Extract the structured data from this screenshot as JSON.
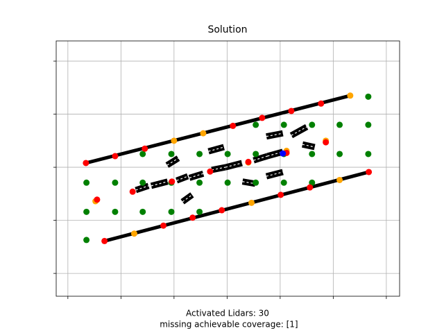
{
  "chart_data": {
    "type": "scatter",
    "title": "Solution",
    "xlabel": [
      "Activated Lidars: 30",
      " missing achievable coverage: [1]"
    ],
    "xlim": [
      -0.22,
      6.25
    ],
    "ylim": [
      -0.43,
      4.38
    ],
    "xticks": [
      0,
      1,
      2,
      3,
      4,
      5,
      6
    ],
    "yticks": [
      0,
      1,
      2,
      3,
      4
    ],
    "grid": true,
    "lines": [
      {
        "color": "#000000",
        "x": [
          0.34,
          5.32
        ],
        "y": [
          2.08,
          3.35
        ]
      },
      {
        "color": "#000000",
        "x": [
          0.69,
          5.67
        ],
        "y": [
          0.61,
          1.91
        ]
      }
    ],
    "segments": [
      {
        "x": [
          3.74,
          4.05
        ],
        "y": [
          2.58,
          2.64
        ]
      },
      {
        "x": [
          4.21,
          4.5
        ],
        "y": [
          2.6,
          2.76
        ]
      },
      {
        "x": [
          2.65,
          2.94
        ],
        "y": [
          2.3,
          2.38
        ]
      },
      {
        "x": [
          1.87,
          2.08
        ],
        "y": [
          2.04,
          2.17
        ]
      },
      {
        "x": [
          4.42,
          4.65
        ],
        "y": [
          2.43,
          2.38
        ]
      },
      {
        "x": [
          3.76,
          4.05
        ],
        "y": [
          2.21,
          2.29
        ]
      },
      {
        "x": [
          3.5,
          3.76
        ],
        "y": [
          2.13,
          2.21
        ]
      },
      {
        "x": [
          2.97,
          3.28
        ],
        "y": [
          2.0,
          2.08
        ]
      },
      {
        "x": [
          2.71,
          2.97
        ],
        "y": [
          1.95,
          2.0
        ]
      },
      {
        "x": [
          2.29,
          2.55
        ],
        "y": [
          1.8,
          1.88
        ]
      },
      {
        "x": [
          2.05,
          2.26
        ],
        "y": [
          1.75,
          1.83
        ]
      },
      {
        "x": [
          1.57,
          1.88
        ],
        "y": [
          1.65,
          1.73
        ]
      },
      {
        "x": [
          1.28,
          1.52
        ],
        "y": [
          1.57,
          1.65
        ]
      },
      {
        "x": [
          3.29,
          3.53
        ],
        "y": [
          1.73,
          1.69
        ]
      },
      {
        "x": [
          3.74,
          4.05
        ],
        "y": [
          1.83,
          1.91
        ]
      },
      {
        "x": [
          2.16,
          2.34
        ],
        "y": [
          1.35,
          1.48
        ]
      }
    ],
    "series": [
      {
        "color": "#008000",
        "x": [
          5.66,
          3.54,
          4.07,
          4.6,
          5.12,
          5.66,
          1.41,
          1.95,
          2.48,
          3.01,
          3.54,
          4.07,
          4.6,
          5.12,
          5.66,
          0.35,
          0.89,
          1.41,
          1.95,
          2.48,
          3.01,
          3.54,
          4.07,
          4.6,
          0.35,
          0.89,
          1.41,
          1.95,
          2.48,
          0.35
        ],
        "y": [
          3.33,
          2.8,
          2.8,
          2.8,
          2.8,
          2.8,
          2.25,
          2.25,
          2.25,
          2.25,
          2.25,
          2.25,
          2.25,
          2.25,
          2.25,
          1.71,
          1.71,
          1.71,
          1.71,
          1.71,
          1.71,
          1.71,
          1.71,
          1.71,
          1.16,
          1.16,
          1.16,
          1.16,
          1.16,
          0.63
        ]
      },
      {
        "color": "#ffa500",
        "x": [
          5.32,
          2.55,
          2.0,
          0.52,
          4.86,
          4.12,
          3.4,
          1.25,
          3.46,
          5.12
        ],
        "y": [
          3.35,
          2.64,
          2.5,
          1.36,
          2.5,
          2.31,
          2.09,
          0.75,
          1.33,
          1.76
        ]
      },
      {
        "color": "#ff0000",
        "x": [
          0.34,
          0.89,
          1.45,
          3.11,
          3.66,
          4.21,
          4.77,
          0.69,
          1.8,
          2.35,
          2.9,
          4.01,
          4.56,
          5.67,
          0.55,
          1.22,
          1.96,
          2.68,
          3.4,
          4.12,
          4.86
        ],
        "y": [
          2.08,
          2.21,
          2.35,
          2.78,
          2.93,
          3.06,
          3.2,
          0.61,
          0.9,
          1.05,
          1.19,
          1.48,
          1.62,
          1.91,
          1.39,
          1.54,
          1.73,
          1.92,
          2.1,
          2.27,
          2.47
        ]
      },
      {
        "color": "#0000ff",
        "x": [
          4.05
        ],
        "y": [
          2.26
        ]
      }
    ]
  }
}
